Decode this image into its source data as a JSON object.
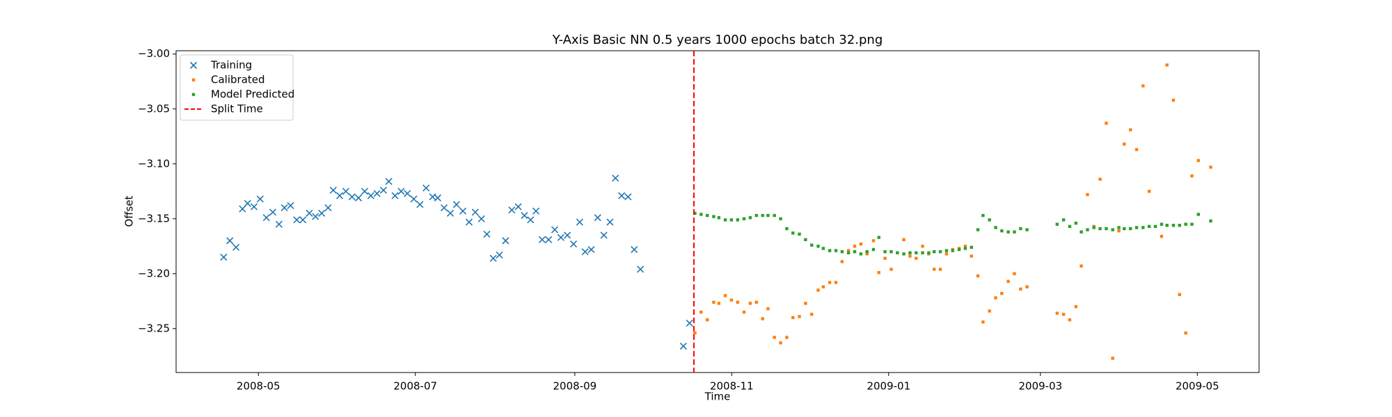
{
  "chart_data": {
    "type": "scatter",
    "title": "Y-Axis Basic NN 0.5 years 1000 epochs batch 32.png",
    "x_label": "Time",
    "y_label": "Offset",
    "xlim": [
      13968,
      14389
    ],
    "ylim": [
      -3.29,
      -2.997
    ],
    "xticks": [
      {
        "value": 14000,
        "label": "2008-05"
      },
      {
        "value": 14061,
        "label": "2008-07"
      },
      {
        "value": 14123,
        "label": "2008-09"
      },
      {
        "value": 14184,
        "label": "2008-11"
      },
      {
        "value": 14245,
        "label": "2009-01"
      },
      {
        "value": 14304,
        "label": "2009-03"
      },
      {
        "value": 14365,
        "label": "2009-05"
      }
    ],
    "yticks": [
      {
        "value": -3.25,
        "label": "−3.25"
      },
      {
        "value": -3.2,
        "label": "−3.20"
      },
      {
        "value": -3.15,
        "label": "−3.15"
      },
      {
        "value": -3.1,
        "label": "−3.10"
      },
      {
        "value": -3.05,
        "label": "−3.05"
      },
      {
        "value": -3.0,
        "label": "−3.00"
      }
    ],
    "legend": "upper left",
    "series": [
      {
        "name": "Training",
        "color": "#1f77b4",
        "marker": "x",
        "x": [
          13986.5,
          13988.9,
          13991.3,
          13993.8,
          13995.8,
          13998.3,
          14000.7,
          14003.1,
          14005.6,
          14008.0,
          14010.1,
          14012.5,
          14014.9,
          14017.3,
          14019.8,
          14022.2,
          14024.6,
          14027.1,
          14029.1,
          14031.6,
          14034.0,
          14036.4,
          14038.9,
          14041.3,
          14043.7,
          14046.1,
          14048.6,
          14050.7,
          14053.1,
          14055.5,
          14057.9,
          14060.4,
          14062.8,
          14065.2,
          14067.7,
          14069.7,
          14072.2,
          14074.6,
          14077.0,
          14079.5,
          14081.9,
          14084.3,
          14086.7,
          14088.8,
          14091.3,
          14093.7,
          14096.1,
          14098.5,
          14101.0,
          14103.4,
          14105.8,
          14107.9,
          14110.3,
          14112.8,
          14115.2,
          14117.6,
          14120.1,
          14122.5,
          14124.9,
          14127.0,
          14129.4,
          14131.9,
          14134.3,
          14136.7,
          14138.8,
          14141.2,
          14143.7,
          14146.1,
          14148.5,
          14165.2,
          14167.6
        ],
        "values": [
          -3.185,
          -3.17,
          -3.176,
          -3.141,
          -3.136,
          -3.139,
          -3.132,
          -3.149,
          -3.144,
          -3.155,
          -3.14,
          -3.138,
          -3.151,
          -3.151,
          -3.145,
          -3.148,
          -3.145,
          -3.14,
          -3.124,
          -3.129,
          -3.125,
          -3.13,
          -3.131,
          -3.125,
          -3.129,
          -3.127,
          -3.124,
          -3.116,
          -3.129,
          -3.125,
          -3.127,
          -3.132,
          -3.137,
          -3.122,
          -3.13,
          -3.131,
          -3.14,
          -3.145,
          -3.137,
          -3.143,
          -3.153,
          -3.144,
          -3.15,
          -3.164,
          -3.186,
          -3.183,
          -3.17,
          -3.142,
          -3.139,
          -3.147,
          -3.151,
          -3.143,
          -3.169,
          -3.169,
          -3.16,
          -3.167,
          -3.165,
          -3.173,
          -3.153,
          -3.18,
          -3.178,
          -3.149,
          -3.165,
          -3.153,
          -3.113,
          -3.129,
          -3.13,
          -3.178,
          -3.196,
          -3.266,
          -3.245
        ]
      },
      {
        "name": "Calibrated",
        "color": "#ff7f0e",
        "marker": "s",
        "x": [
          14169.7,
          14172.1,
          14174.5,
          14177.0,
          14179.0,
          14181.5,
          14183.9,
          14186.3,
          14188.8,
          14191.2,
          14193.6,
          14196.0,
          14198.1,
          14200.6,
          14203.0,
          14205.4,
          14207.8,
          14210.3,
          14212.7,
          14215.1,
          14217.6,
          14219.6,
          14222.1,
          14224.5,
          14226.9,
          14229.4,
          14231.8,
          14234.2,
          14236.6,
          14239.1,
          14241.2,
          14243.6,
          14246.0,
          14250.9,
          14253.3,
          14255.7,
          14258.2,
          14260.6,
          14262.7,
          14265.1,
          14267.5,
          14269.9,
          14272.4,
          14274.8,
          14277.2,
          14279.7,
          14281.7,
          14284.2,
          14286.6,
          14289.0,
          14291.5,
          14293.9,
          14296.3,
          14298.8,
          14310.5,
          14313.0,
          14315.4,
          14317.8,
          14319.9,
          14322.3,
          14324.8,
          14327.2,
          14329.6,
          14332.1,
          14334.5,
          14336.6,
          14339.0,
          14341.4,
          14343.9,
          14346.3,
          14351.1,
          14353.2,
          14355.7,
          14358.1,
          14360.5,
          14362.9,
          14365.4,
          14370.2
        ],
        "values": [
          -3.254,
          -3.235,
          -3.242,
          -3.226,
          -3.227,
          -3.22,
          -3.224,
          -3.226,
          -3.235,
          -3.227,
          -3.226,
          -3.241,
          -3.232,
          -3.258,
          -3.263,
          -3.258,
          -3.24,
          -3.239,
          -3.227,
          -3.237,
          -3.215,
          -3.212,
          -3.208,
          -3.208,
          -3.189,
          -3.179,
          -3.175,
          -3.173,
          -3.182,
          -3.17,
          -3.199,
          -3.186,
          -3.196,
          -3.169,
          -3.184,
          -3.186,
          -3.175,
          -3.182,
          -3.196,
          -3.196,
          -3.182,
          -3.178,
          -3.177,
          -3.175,
          -3.184,
          -3.202,
          -3.244,
          -3.234,
          -3.222,
          -3.218,
          -3.207,
          -3.2,
          -3.214,
          -3.212,
          -3.236,
          -3.237,
          -3.242,
          -3.23,
          -3.193,
          -3.128,
          -3.157,
          -3.114,
          -3.063,
          -3.277,
          -3.161,
          -3.082,
          -3.069,
          -3.087,
          -3.029,
          -3.125,
          -3.166,
          -3.01,
          -3.042,
          -3.219,
          -3.254,
          -3.111,
          -3.097,
          -3.103
        ]
      },
      {
        "name": "Model Predicted",
        "color": "#2ca02c",
        "marker": "s",
        "x": [
          14169.7,
          14172.1,
          14174.5,
          14177.0,
          14179.0,
          14181.5,
          14183.9,
          14186.3,
          14188.8,
          14191.2,
          14193.6,
          14196.0,
          14198.1,
          14200.6,
          14203.0,
          14205.4,
          14207.8,
          14210.3,
          14212.7,
          14215.1,
          14217.6,
          14219.6,
          14222.1,
          14224.5,
          14226.9,
          14229.4,
          14231.8,
          14234.2,
          14236.6,
          14239.1,
          14241.2,
          14243.6,
          14246.0,
          14248.4,
          14250.9,
          14253.3,
          14255.7,
          14258.2,
          14260.6,
          14262.7,
          14265.1,
          14267.5,
          14269.9,
          14272.4,
          14274.8,
          14277.2,
          14279.7,
          14281.7,
          14284.2,
          14286.6,
          14289.0,
          14291.5,
          14293.9,
          14296.3,
          14298.8,
          14310.5,
          14313.0,
          14315.4,
          14317.8,
          14319.9,
          14322.3,
          14324.8,
          14327.2,
          14329.6,
          14332.1,
          14334.5,
          14336.6,
          14339.0,
          14341.4,
          14343.9,
          14346.3,
          14348.7,
          14351.1,
          14353.2,
          14355.7,
          14358.1,
          14360.5,
          14362.9,
          14365.4,
          14370.2
        ],
        "values": [
          -3.145,
          -3.146,
          -3.147,
          -3.148,
          -3.149,
          -3.151,
          -3.151,
          -3.151,
          -3.15,
          -3.149,
          -3.147,
          -3.147,
          -3.147,
          -3.147,
          -3.15,
          -3.159,
          -3.163,
          -3.164,
          -3.169,
          -3.174,
          -3.175,
          -3.177,
          -3.179,
          -3.179,
          -3.18,
          -3.181,
          -3.18,
          -3.182,
          -3.18,
          -3.178,
          -3.167,
          -3.18,
          -3.18,
          -3.181,
          -3.182,
          -3.181,
          -3.181,
          -3.181,
          -3.181,
          -3.18,
          -3.18,
          -3.179,
          -3.179,
          -3.178,
          -3.177,
          -3.176,
          -3.16,
          -3.147,
          -3.151,
          -3.158,
          -3.161,
          -3.162,
          -3.162,
          -3.159,
          -3.16,
          -3.155,
          -3.151,
          -3.157,
          -3.154,
          -3.162,
          -3.16,
          -3.158,
          -3.159,
          -3.159,
          -3.16,
          -3.158,
          -3.159,
          -3.159,
          -3.158,
          -3.158,
          -3.157,
          -3.157,
          -3.155,
          -3.156,
          -3.156,
          -3.156,
          -3.155,
          -3.155,
          -3.146,
          -3.152
        ]
      }
    ],
    "vlines": [
      {
        "name": "Split Time",
        "x": 14169.3,
        "color": "#ff0000",
        "style": "dashed"
      }
    ]
  }
}
